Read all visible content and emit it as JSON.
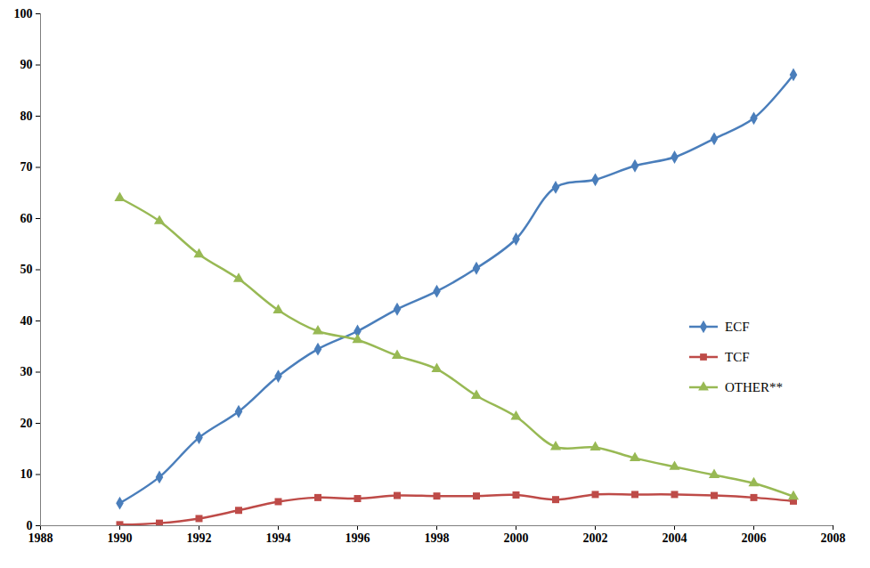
{
  "chart_data": {
    "type": "line",
    "x": [
      1990,
      1991,
      1992,
      1993,
      1994,
      1995,
      1996,
      1997,
      1998,
      1999,
      2000,
      2001,
      2002,
      2003,
      2004,
      2005,
      2006,
      2007
    ],
    "series": [
      {
        "name": "ECF",
        "color": "#4a7ebb",
        "marker": "diamond",
        "values": [
          4.4,
          9.5,
          17.2,
          22.3,
          29.2,
          34.5,
          38,
          42.3,
          45.8,
          50.3,
          56,
          66.1,
          67.6,
          70.3,
          72,
          75.6,
          79.6,
          88.1
        ]
      },
      {
        "name": "TCF",
        "color": "#be4b48",
        "marker": "square",
        "values": [
          0.2,
          0.5,
          1.4,
          3,
          4.7,
          5.5,
          5.3,
          5.9,
          5.8,
          5.8,
          6,
          5.1,
          6.1,
          6.1,
          6.1,
          5.9,
          5.5,
          4.8
        ]
      },
      {
        "name": "OTHER**",
        "color": "#98b954",
        "marker": "triangle",
        "values": [
          64,
          59.5,
          53,
          48.2,
          42.1,
          38,
          36.3,
          33.2,
          30.6,
          25.4,
          21.3,
          15.4,
          15.3,
          13.2,
          11.5,
          9.9,
          8.3,
          5.7
        ]
      }
    ],
    "xlim": [
      1988,
      2008
    ],
    "xticks": [
      1988,
      1990,
      1992,
      1994,
      1996,
      1998,
      2000,
      2002,
      2004,
      2006,
      2008
    ],
    "ylim": [
      0,
      100
    ],
    "yticks": [
      0,
      10,
      20,
      30,
      40,
      50,
      60,
      70,
      80,
      90,
      100
    ],
    "grid": false,
    "legend": "right"
  }
}
